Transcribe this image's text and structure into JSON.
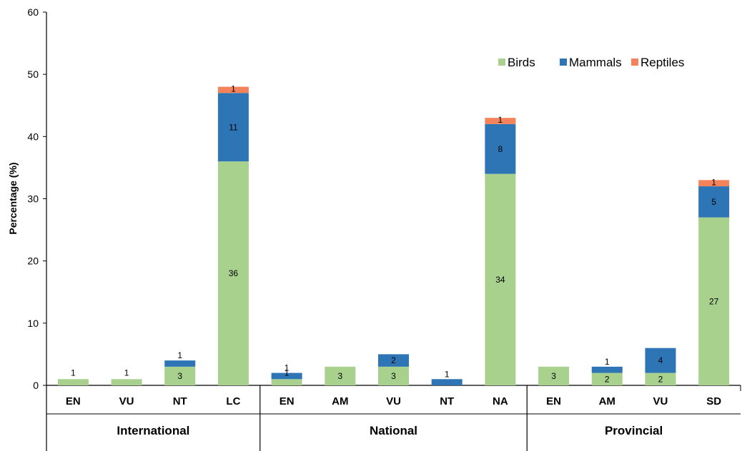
{
  "chart_data": {
    "type": "bar",
    "stacked": true,
    "ylabel": "Percentage (%)",
    "ylim": [
      0,
      60
    ],
    "yticks": [
      0,
      10,
      20,
      30,
      40,
      50,
      60
    ],
    "legend_position": "top-right",
    "groups": [
      {
        "name": "International",
        "categories": [
          "EN",
          "VU",
          "NT",
          "LC"
        ]
      },
      {
        "name": "National",
        "categories": [
          "EN",
          "AM",
          "VU",
          "NT",
          "NA"
        ]
      },
      {
        "name": "Provincial",
        "categories": [
          "EN",
          "AM",
          "VU",
          "SD"
        ]
      }
    ],
    "categories": [
      "EN",
      "VU",
      "NT",
      "LC",
      "EN",
      "AM",
      "VU",
      "NT",
      "NA",
      "EN",
      "AM",
      "VU",
      "SD"
    ],
    "series": [
      {
        "name": "Birds",
        "color": "#a9d18e",
        "values": [
          1,
          1,
          3,
          36,
          1,
          3,
          3,
          0,
          34,
          3,
          2,
          2,
          27
        ],
        "labels": [
          "1",
          "1",
          "3",
          "36",
          "1",
          "3",
          "3",
          "",
          "34",
          "3",
          "2",
          "2",
          "27"
        ]
      },
      {
        "name": "Mammals",
        "color": "#2e75b6",
        "values": [
          0,
          0,
          1,
          11,
          1,
          0,
          2,
          1,
          8,
          0,
          1,
          4,
          5
        ],
        "labels": [
          "",
          "",
          "1",
          "11",
          "1",
          "",
          "2",
          "1",
          "8",
          "",
          "1",
          "4",
          "5"
        ]
      },
      {
        "name": "Reptiles",
        "color": "#f4825a",
        "values": [
          0,
          0,
          0,
          1,
          0,
          0,
          0,
          0,
          1,
          0,
          0,
          0,
          1
        ],
        "labels": [
          "",
          "",
          "",
          "1",
          "",
          "",
          "",
          "",
          "1",
          "",
          "",
          "",
          "1"
        ]
      }
    ]
  }
}
